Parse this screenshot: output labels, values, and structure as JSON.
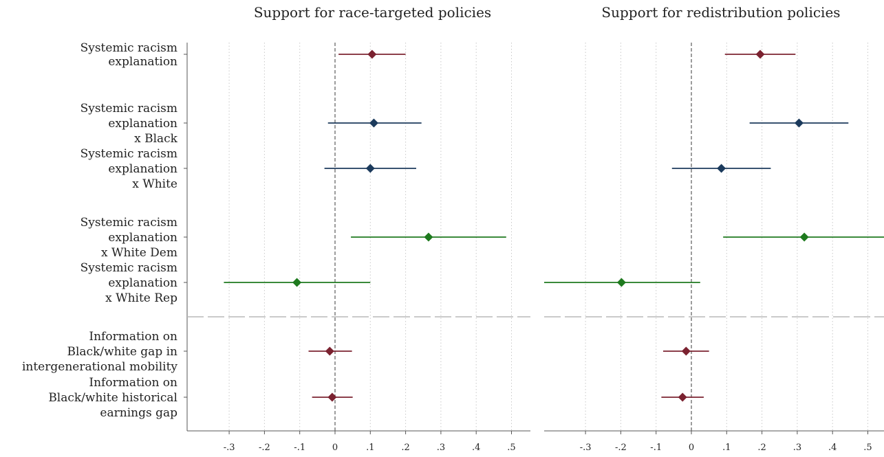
{
  "chart_data": {
    "type": "scatter",
    "subtype": "coefficient-plot",
    "row_labels": [
      [
        "Systemic racism",
        "explanation"
      ],
      [
        "Systemic racism",
        "explanation",
        "x Black"
      ],
      [
        "Systemic racism",
        "explanation",
        "x White"
      ],
      [
        "Systemic racism",
        "explanation",
        "x White Dem"
      ],
      [
        "Systemic racism",
        "explanation",
        "x White Rep"
      ],
      [
        "Information on",
        "Black/white gap in",
        "intergenerational mobility"
      ],
      [
        "Information on",
        "Black/white historical",
        "earnings gap"
      ]
    ],
    "row_groups": [
      "overall",
      "race",
      "race",
      "party",
      "party",
      "information",
      "information"
    ],
    "group_colors": {
      "overall": "#7b2230",
      "race": "#1b3a5c",
      "party": "#1e7a1e",
      "information": "#7b2230"
    },
    "reference_line_x": 0,
    "separator_after_row": 4,
    "x_ticks": [
      -0.3,
      -0.2,
      -0.1,
      0,
      0.1,
      0.2,
      0.3,
      0.4,
      0.5
    ],
    "x_tick_labels": [
      "-.3",
      "-.2",
      "-.1",
      "0",
      ".1",
      ".2",
      ".3",
      ".4",
      ".5"
    ],
    "grid": "vertical-dotted",
    "panels": [
      {
        "title": "Support for race-targeted policies",
        "xlim": [
          -0.42,
          0.55
        ],
        "series": [
          {
            "estimate": 0.105,
            "ci_low": 0.01,
            "ci_high": 0.2
          },
          {
            "estimate": 0.11,
            "ci_low": -0.02,
            "ci_high": 0.245
          },
          {
            "estimate": 0.1,
            "ci_low": -0.03,
            "ci_high": 0.23
          },
          {
            "estimate": 0.265,
            "ci_low": 0.045,
            "ci_high": 0.485
          },
          {
            "estimate": -0.108,
            "ci_low": -0.315,
            "ci_high": 0.1
          },
          {
            "estimate": -0.015,
            "ci_low": -0.075,
            "ci_high": 0.048
          },
          {
            "estimate": -0.008,
            "ci_low": -0.065,
            "ci_high": 0.05
          }
        ]
      },
      {
        "title": "Support for redistribution policies",
        "xlim": [
          -0.42,
          0.55
        ],
        "series": [
          {
            "estimate": 0.195,
            "ci_low": 0.095,
            "ci_high": 0.295
          },
          {
            "estimate": 0.305,
            "ci_low": 0.165,
            "ci_high": 0.445
          },
          {
            "estimate": 0.085,
            "ci_low": -0.055,
            "ci_high": 0.225
          },
          {
            "estimate": 0.32,
            "ci_low": 0.09,
            "ci_high": 0.55
          },
          {
            "estimate": -0.198,
            "ci_low": -0.42,
            "ci_high": 0.025
          },
          {
            "estimate": -0.015,
            "ci_low": -0.08,
            "ci_high": 0.05
          },
          {
            "estimate": -0.025,
            "ci_low": -0.085,
            "ci_high": 0.035
          }
        ]
      }
    ]
  }
}
